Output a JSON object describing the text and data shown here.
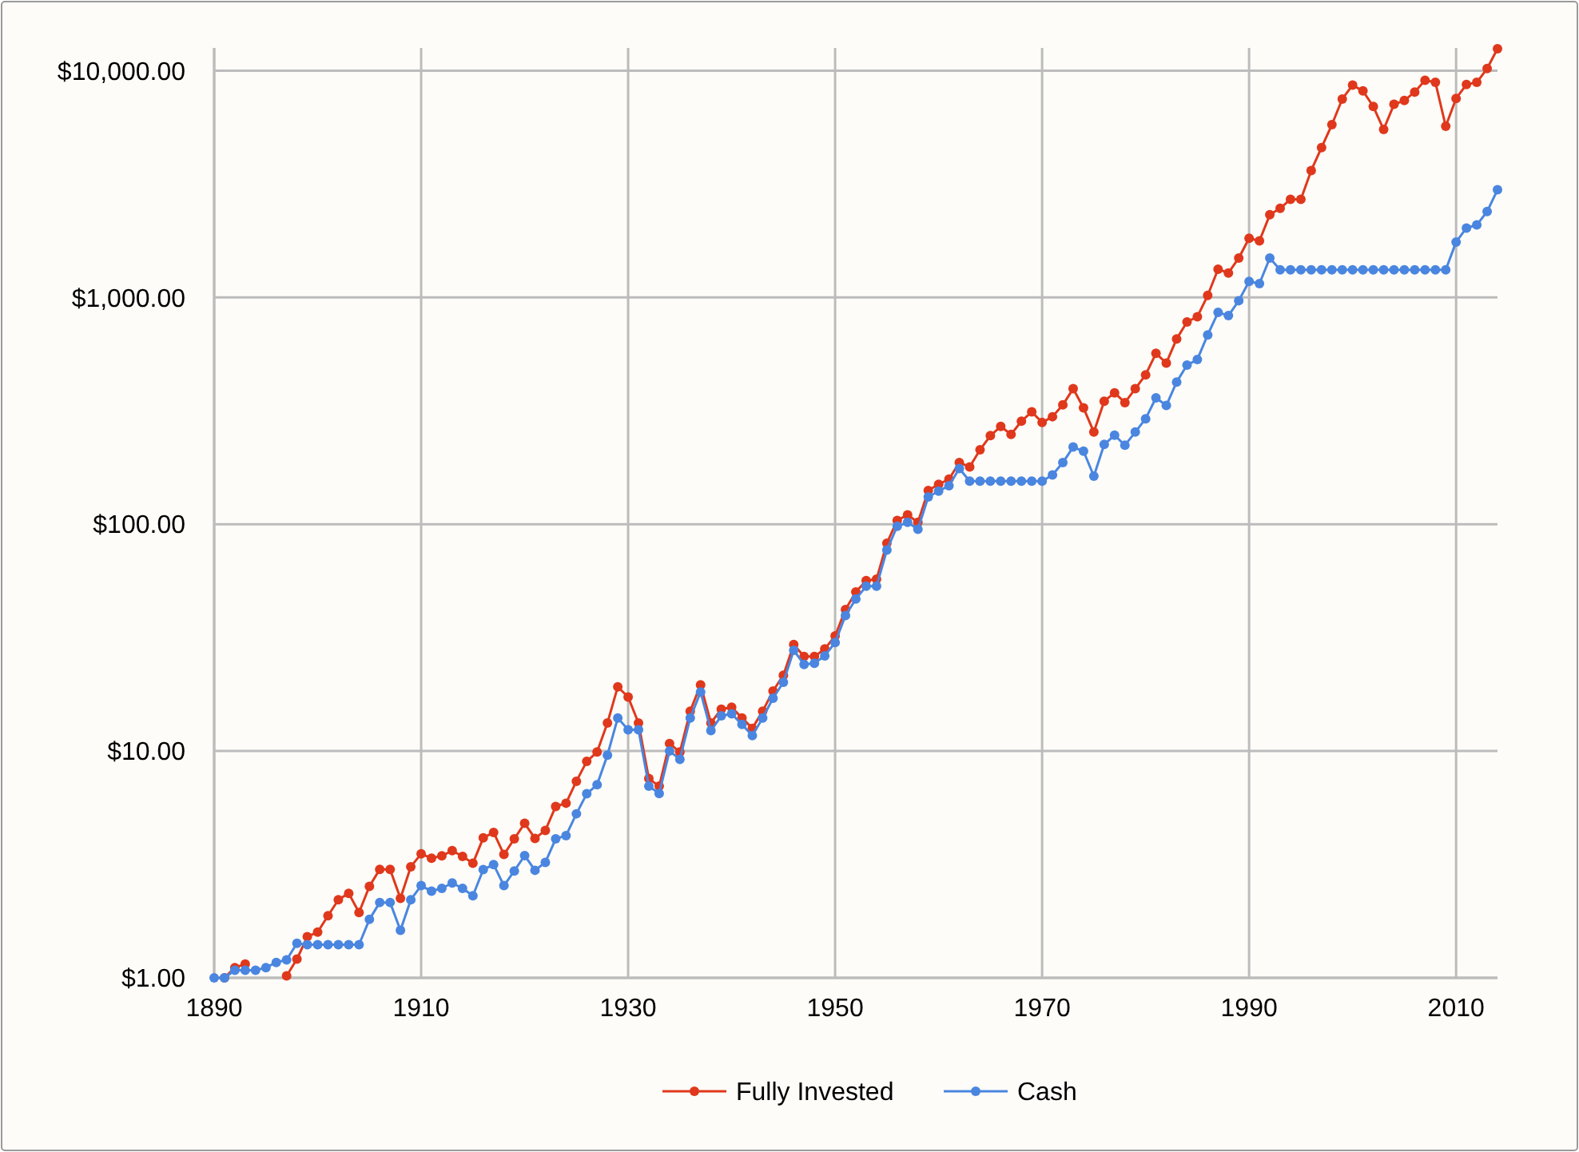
{
  "chart_data": {
    "type": "line",
    "log": "y",
    "grid": true,
    "legend": "bottom",
    "marker": "circle",
    "line_style": "solid",
    "xlim": [
      1890,
      2014
    ],
    "xticks": [
      1890,
      1910,
      1930,
      1950,
      1970,
      1990,
      2010
    ],
    "ylim": [
      1,
      12600
    ],
    "yticks": [
      {
        "value": 1,
        "label": "$1.00"
      },
      {
        "value": 10,
        "label": "$10.00"
      },
      {
        "value": 100,
        "label": "$100.00"
      },
      {
        "value": 1000,
        "label": "$1,000.00"
      },
      {
        "value": 10000,
        "label": "$10,000.00"
      }
    ],
    "x": [
      1890,
      1891,
      1892,
      1893,
      1894,
      1895,
      1896,
      1897,
      1898,
      1899,
      1900,
      1901,
      1902,
      1903,
      1904,
      1905,
      1906,
      1907,
      1908,
      1909,
      1910,
      1911,
      1912,
      1913,
      1914,
      1915,
      1916,
      1917,
      1918,
      1919,
      1920,
      1921,
      1922,
      1923,
      1924,
      1925,
      1926,
      1927,
      1928,
      1929,
      1930,
      1931,
      1932,
      1933,
      1934,
      1935,
      1936,
      1937,
      1938,
      1939,
      1940,
      1941,
      1942,
      1943,
      1944,
      1945,
      1946,
      1947,
      1948,
      1949,
      1950,
      1951,
      1952,
      1953,
      1954,
      1955,
      1956,
      1957,
      1958,
      1959,
      1960,
      1961,
      1962,
      1963,
      1964,
      1965,
      1966,
      1967,
      1968,
      1969,
      1970,
      1971,
      1972,
      1973,
      1974,
      1975,
      1976,
      1977,
      1978,
      1979,
      1980,
      1981,
      1982,
      1983,
      1984,
      1985,
      1986,
      1987,
      1988,
      1989,
      1990,
      1991,
      1992,
      1993,
      1994,
      1995,
      1996,
      1997,
      1998,
      1999,
      2000,
      2001,
      2002,
      2003,
      2004,
      2005,
      2006,
      2007,
      2008,
      2009,
      2010,
      2011,
      2012,
      2013,
      2014
    ],
    "series": [
      {
        "name": "Fully Invested",
        "color": "#e0381c",
        "values": [
          null,
          1.0,
          1.11,
          1.15,
          null,
          null,
          null,
          1.02,
          1.21,
          1.52,
          1.59,
          1.88,
          2.21,
          2.36,
          1.94,
          2.53,
          3.01,
          3.01,
          2.24,
          3.09,
          3.52,
          3.37,
          3.45,
          3.64,
          3.43,
          3.2,
          4.14,
          4.38,
          3.5,
          4.1,
          4.8,
          4.12,
          4.47,
          5.7,
          5.89,
          7.36,
          9.0,
          9.9,
          13.3,
          19.2,
          17.3,
          13.3,
          7.56,
          7.0,
          10.8,
          9.9,
          15.0,
          19.6,
          13.3,
          15.3,
          15.6,
          14.0,
          12.6,
          15.0,
          18.4,
          21.6,
          29.5,
          26.1,
          26.1,
          28.2,
          32.2,
          42.1,
          50.3,
          56.4,
          57.3,
          82.5,
          104,
          110,
          102,
          141,
          150,
          158,
          187,
          179,
          213,
          246,
          270,
          249,
          285,
          313,
          281,
          298,
          336,
          396,
          326,
          255,
          349,
          380,
          344,
          396,
          456,
          567,
          514,
          657,
          780,
          823,
          1021,
          1333,
          1283,
          1493,
          1825,
          1776,
          2316,
          2471,
          2710,
          2710,
          3631,
          4581,
          5781,
          7499,
          8636,
          8140,
          6955,
          5508,
          7107,
          7387,
          8055,
          9070,
          8883,
          5688,
          7548,
          8692,
          8883,
          10220,
          12500
        ]
      },
      {
        "name": "Cash",
        "color": "#4a86e0",
        "values": [
          1,
          1.0,
          1.08,
          1.08,
          1.08,
          1.11,
          1.17,
          1.2,
          1.42,
          1.4,
          1.4,
          1.4,
          1.4,
          1.4,
          1.4,
          1.81,
          2.15,
          2.15,
          1.62,
          2.21,
          2.55,
          2.41,
          2.48,
          2.62,
          2.48,
          2.3,
          3.0,
          3.16,
          2.55,
          2.96,
          3.46,
          2.98,
          3.23,
          4.1,
          4.24,
          5.29,
          6.48,
          7.1,
          9.6,
          14.0,
          12.4,
          12.4,
          7.0,
          6.5,
          10.0,
          9.2,
          14.0,
          18.2,
          12.3,
          14.3,
          14.6,
          13.1,
          11.7,
          14.0,
          17.1,
          20.1,
          27.8,
          24.1,
          24.4,
          26.3,
          30.1,
          39.6,
          46.8,
          53.3,
          53.3,
          77,
          98,
          102,
          95,
          132,
          140,
          148,
          176,
          155,
          155,
          155,
          155,
          155,
          155,
          155,
          155,
          165,
          187,
          219,
          210,
          163,
          225,
          247,
          223,
          255,
          292,
          361,
          334,
          424,
          503,
          533,
          684,
          859,
          832,
          968,
          1177,
          1151,
          1493,
          1325,
          1325,
          1325,
          1325,
          1325,
          1325,
          1325,
          1325,
          1325,
          1325,
          1325,
          1325,
          1325,
          1325,
          1325,
          1325,
          1325,
          1757,
          2024,
          2090,
          2393,
          2985
        ]
      }
    ]
  }
}
